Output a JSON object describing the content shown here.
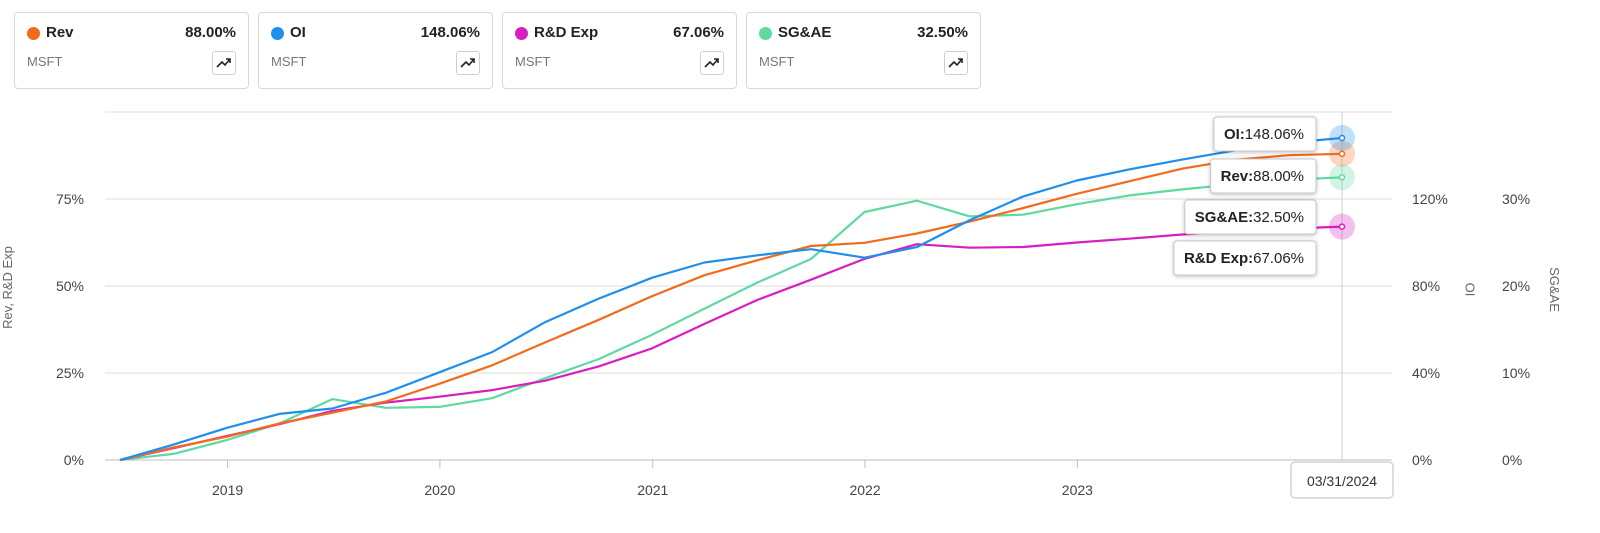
{
  "cards": [
    {
      "name": "Rev",
      "value": "88.00%",
      "ticker": "MSFT",
      "color": "#f26b1d",
      "icon": "trend-up-icon"
    },
    {
      "name": "OI",
      "value": "148.06%",
      "ticker": "MSFT",
      "color": "#1f8fec",
      "icon": "trend-up-icon"
    },
    {
      "name": "R&D Exp",
      "value": "67.06%",
      "ticker": "MSFT",
      "color": "#d71ec1",
      "icon": "trend-up-icon"
    },
    {
      "name": "SG&AE",
      "value": "32.50%",
      "ticker": "MSFT",
      "color": "#5fd9a0",
      "icon": "trend-up-icon"
    }
  ],
  "tooltips": [
    {
      "label": "OI:",
      "value": "148.06%"
    },
    {
      "label": "Rev:",
      "value": "88.00%"
    },
    {
      "label": "SG&AE:",
      "value": "32.50%"
    },
    {
      "label": "R&D Exp:",
      "value": "67.06%"
    }
  ],
  "crosshair_date": "03/31/2024",
  "chart_data": {
    "type": "line",
    "xlabel": "",
    "x_ticks": [
      "2019",
      "2020",
      "2021",
      "2022",
      "2023"
    ],
    "xlim": [
      "2018-06-30",
      "2024-03-31"
    ],
    "y_left": {
      "label": "Rev, R&D Exp",
      "ticks": [
        "0%",
        "25%",
        "50%",
        "75%"
      ],
      "ylim": [
        0,
        100
      ]
    },
    "y_oi": {
      "label": "OI",
      "ticks": [
        "0%",
        "40%",
        "80%",
        "120%"
      ],
      "ylim": [
        0,
        160
      ]
    },
    "y_sgae": {
      "label": "SG&AE",
      "ticks": [
        "0%",
        "10%",
        "20%",
        "30%"
      ],
      "ylim": [
        0,
        40
      ]
    },
    "grid": true,
    "series": [
      {
        "name": "Rev",
        "axis": "left",
        "color": "#f26b1d",
        "x": [
          "2018-06-30",
          "2018-09-30",
          "2018-12-31",
          "2019-03-31",
          "2019-06-30",
          "2019-09-30",
          "2019-12-31",
          "2020-03-31",
          "2020-06-30",
          "2020-09-30",
          "2020-12-31",
          "2021-03-31",
          "2021-06-30",
          "2021-09-30",
          "2021-12-31",
          "2022-03-31",
          "2022-06-30",
          "2022-09-30",
          "2022-12-31",
          "2023-03-31",
          "2023-06-30",
          "2023-09-30",
          "2023-12-31",
          "2024-03-31"
        ],
        "values": [
          0,
          3.6,
          6.7,
          10.5,
          13.6,
          16.8,
          21.9,
          27.2,
          33.8,
          40.3,
          47.1,
          53.1,
          57.4,
          61.5,
          62.4,
          65.1,
          68.5,
          72.4,
          76.5,
          80.1,
          83.7,
          86.3,
          87.6,
          88.0
        ]
      },
      {
        "name": "OI",
        "axis": "oi",
        "color": "#1f8fec",
        "x": [
          "2018-06-30",
          "2018-09-30",
          "2018-12-31",
          "2019-03-31",
          "2019-06-30",
          "2019-09-30",
          "2019-12-31",
          "2020-03-31",
          "2020-06-30",
          "2020-09-30",
          "2020-12-31",
          "2021-03-31",
          "2021-06-30",
          "2021-09-30",
          "2021-12-31",
          "2022-03-31",
          "2022-06-30",
          "2022-09-30",
          "2022-12-31",
          "2023-03-31",
          "2023-06-30",
          "2023-09-30",
          "2023-12-31",
          "2024-03-31"
        ],
        "values": [
          0,
          7.1,
          14.8,
          21.2,
          23.7,
          30.9,
          40.3,
          49.6,
          63.4,
          74.2,
          83.8,
          90.8,
          94.1,
          96.9,
          93.0,
          97.9,
          110.3,
          121.2,
          128.5,
          133.6,
          138.1,
          142.4,
          145.9,
          148.06
        ]
      },
      {
        "name": "R&D Exp",
        "axis": "left",
        "color": "#d71ec1",
        "x": [
          "2018-06-30",
          "2018-09-30",
          "2018-12-31",
          "2019-03-31",
          "2019-06-30",
          "2019-09-30",
          "2019-12-31",
          "2020-03-31",
          "2020-06-30",
          "2020-09-30",
          "2020-12-31",
          "2021-03-31",
          "2021-06-30",
          "2021-09-30",
          "2021-12-31",
          "2022-03-31",
          "2022-06-30",
          "2022-09-30",
          "2022-12-31",
          "2023-03-31",
          "2023-06-30",
          "2023-09-30",
          "2023-12-31",
          "2024-03-31"
        ],
        "values": [
          0,
          3.4,
          6.9,
          10.3,
          14.1,
          16.5,
          18.2,
          20.1,
          22.8,
          26.9,
          32.1,
          39.1,
          46.0,
          51.8,
          57.8,
          62.0,
          61.0,
          61.2,
          62.5,
          63.6,
          64.8,
          65.7,
          66.5,
          67.06
        ]
      },
      {
        "name": "SG&AE",
        "axis": "sgae",
        "color": "#5fd9a0",
        "x": [
          "2018-06-30",
          "2018-09-30",
          "2018-12-31",
          "2019-03-31",
          "2019-06-30",
          "2019-09-30",
          "2019-12-31",
          "2020-03-31",
          "2020-06-30",
          "2020-09-30",
          "2020-12-31",
          "2021-03-31",
          "2021-06-30",
          "2021-09-30",
          "2021-12-31",
          "2022-03-31",
          "2022-06-30",
          "2022-09-30",
          "2022-12-31",
          "2023-03-31",
          "2023-06-30",
          "2023-09-30",
          "2023-12-31",
          "2024-03-31"
        ],
        "values": [
          0,
          0.7,
          2.3,
          4.2,
          7.0,
          6.0,
          6.1,
          7.1,
          9.4,
          11.6,
          14.4,
          17.4,
          20.4,
          23.1,
          28.5,
          29.8,
          28.0,
          28.2,
          29.4,
          30.4,
          31.1,
          31.7,
          32.2,
          32.5
        ]
      }
    ]
  }
}
